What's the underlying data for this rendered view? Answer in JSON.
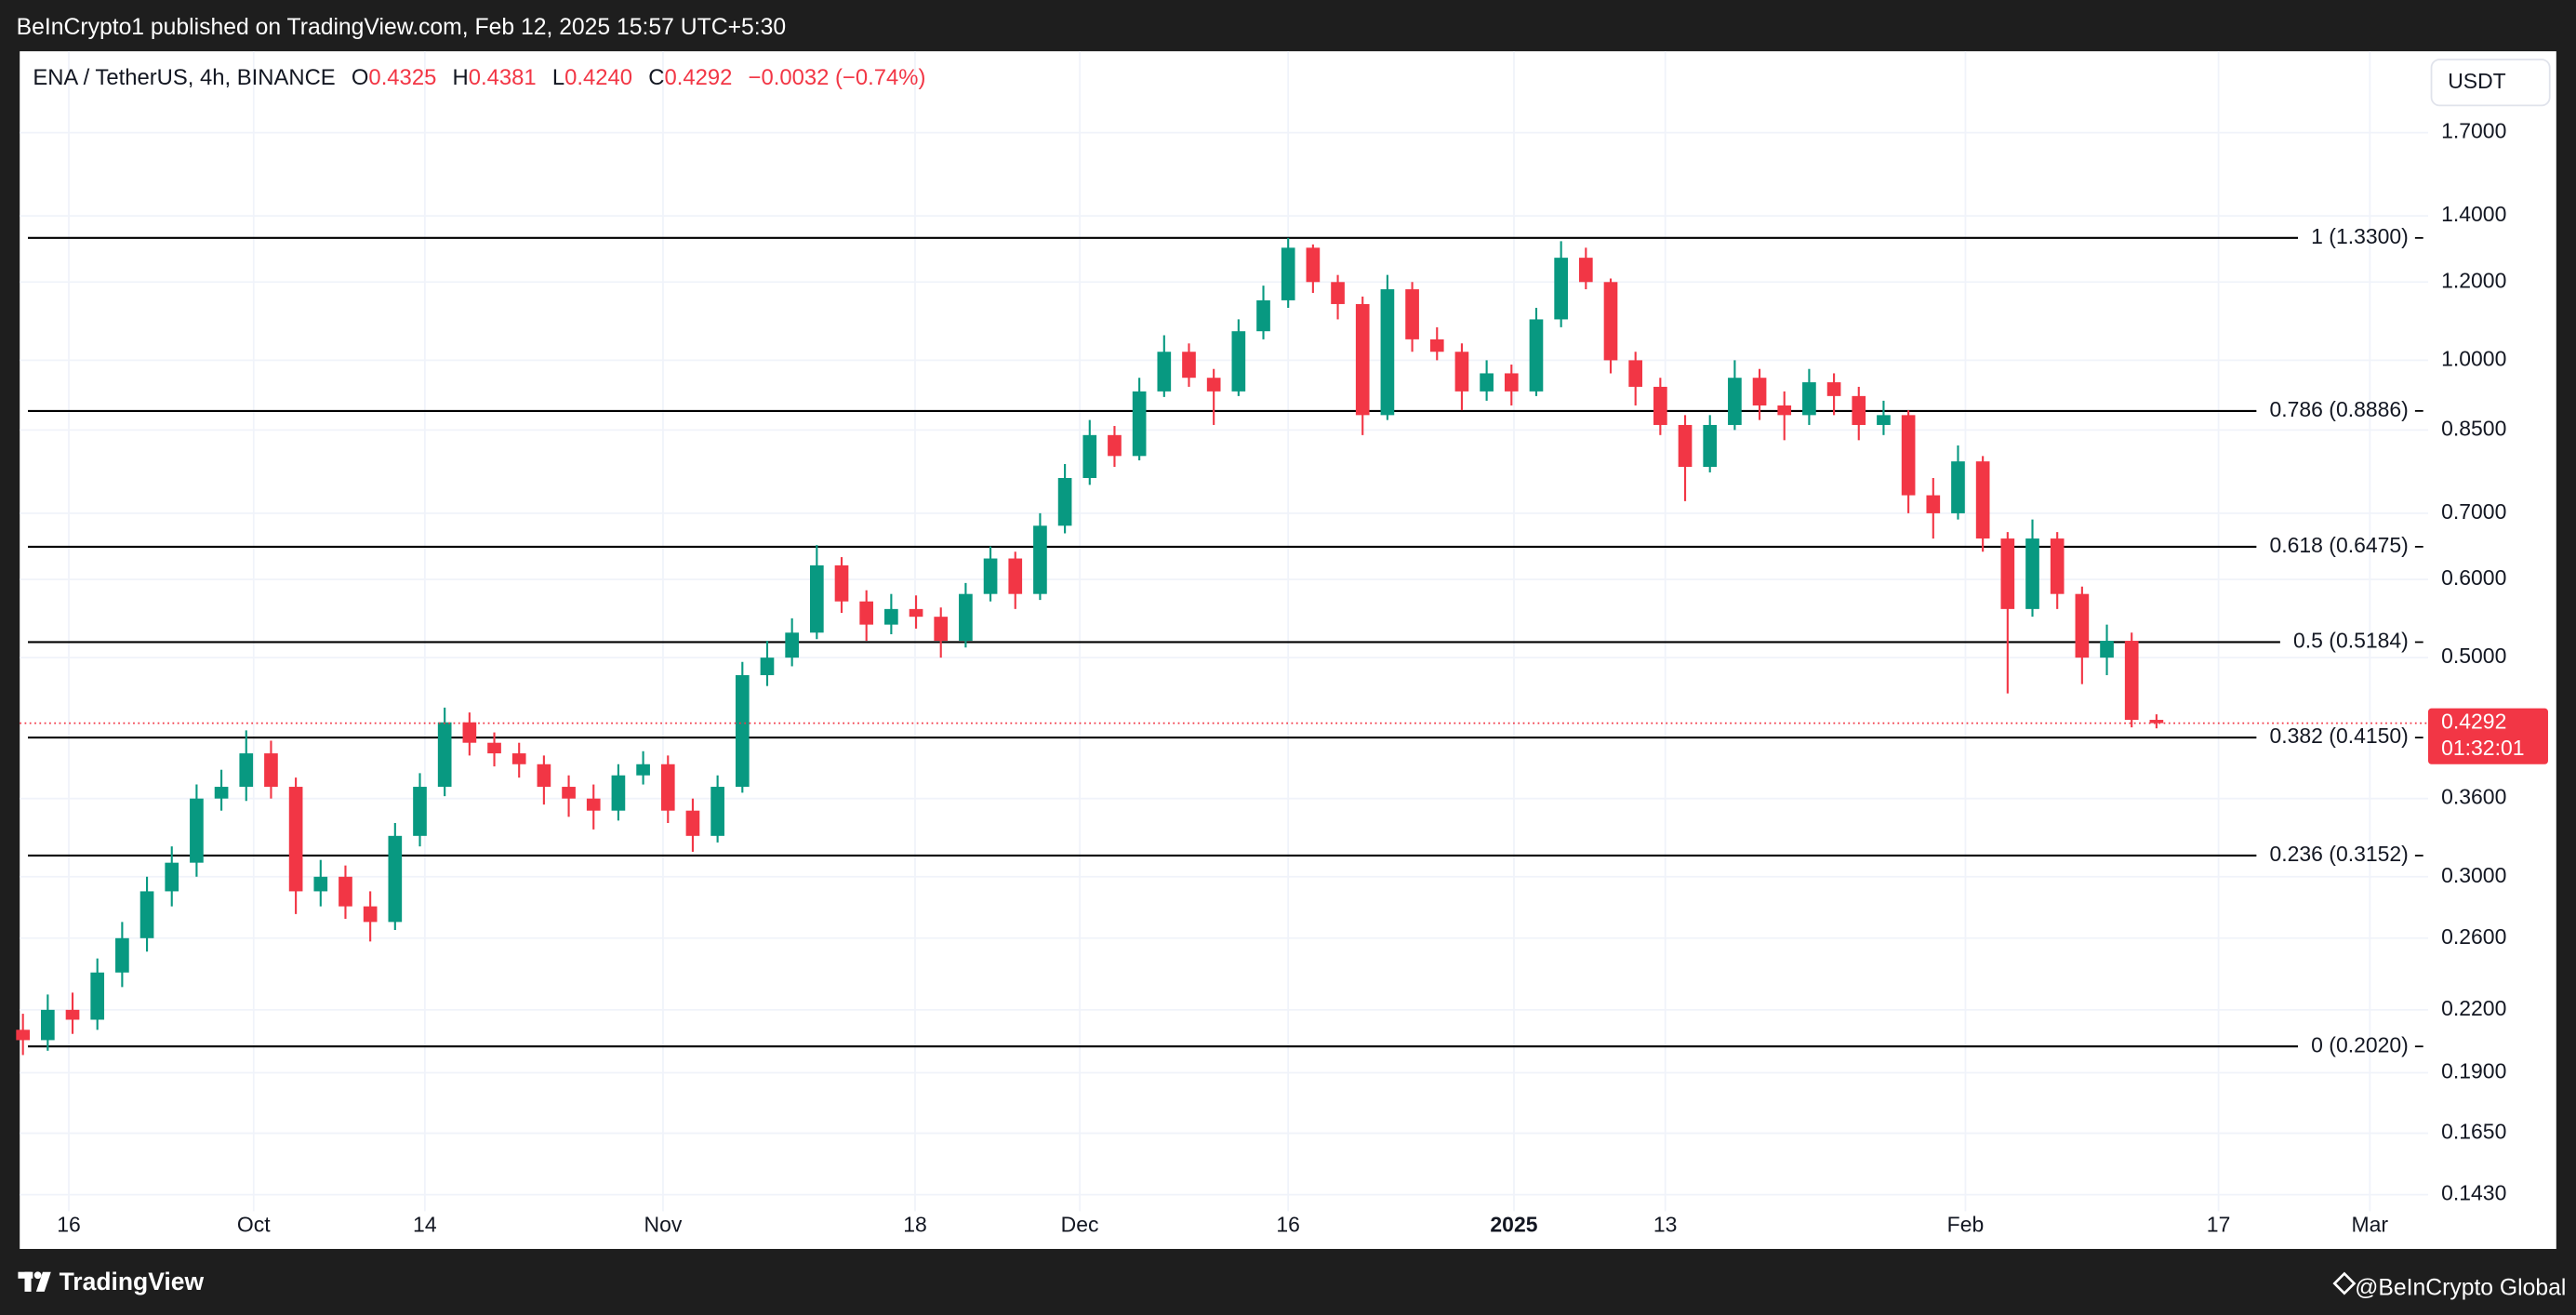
{
  "header": {
    "published": "BeInCrypto1 published on TradingView.com, Feb 12, 2025 15:57 UTC+5:30",
    "symbol": "ENA / TetherUS, 4h, BINANCE",
    "ohlc": [
      {
        "key": "O",
        "value": "0.4325"
      },
      {
        "key": "H",
        "value": "0.4381"
      },
      {
        "key": "L",
        "value": "0.4240"
      },
      {
        "key": "C",
        "value": "0.4292"
      }
    ],
    "change": "−0.0032 (−0.74%)"
  },
  "footer": {
    "brand": "TradingView",
    "credit": "@BeInCrypto Global"
  },
  "chart_data": {
    "type": "candlestick",
    "currency": "USDT",
    "log_scale": true,
    "grid": true,
    "up_color": "#089981",
    "down_color": "#f23645",
    "level_color": "#000000",
    "open": [
      0.21,
      0.205,
      0.22,
      0.215,
      0.24,
      0.26,
      0.29,
      0.31,
      0.36,
      0.37,
      0.4,
      0.37,
      0.29,
      0.3,
      0.28,
      0.27,
      0.33,
      0.37,
      0.43,
      0.41,
      0.4,
      0.39,
      0.37,
      0.36,
      0.35,
      0.38,
      0.39,
      0.35,
      0.33,
      0.37,
      0.48,
      0.5,
      0.53,
      0.62,
      0.57,
      0.54,
      0.56,
      0.55,
      0.52,
      0.58,
      0.63,
      0.58,
      0.68,
      0.76,
      0.84,
      0.8,
      0.93,
      1.02,
      0.96,
      0.93,
      1.07,
      1.15,
      1.3,
      1.2,
      1.14,
      0.88,
      1.18,
      1.05,
      1.02,
      0.93,
      0.97,
      0.93,
      1.1,
      1.27,
      1.2,
      1.0,
      0.94,
      0.86,
      0.78,
      0.86,
      0.96,
      0.9,
      0.88,
      0.95,
      0.92,
      0.86,
      0.88,
      0.73,
      0.7,
      0.79,
      0.66,
      0.56,
      0.66,
      0.58,
      0.5,
      0.52,
      0.4325
    ],
    "high": [
      0.218,
      0.228,
      0.229,
      0.248,
      0.27,
      0.3,
      0.322,
      0.372,
      0.385,
      0.422,
      0.412,
      0.378,
      0.312,
      0.308,
      0.29,
      0.34,
      0.382,
      0.445,
      0.44,
      0.42,
      0.41,
      0.398,
      0.38,
      0.372,
      0.39,
      0.402,
      0.398,
      0.36,
      0.38,
      0.495,
      0.52,
      0.548,
      0.65,
      0.632,
      0.585,
      0.58,
      0.578,
      0.562,
      0.595,
      0.648,
      0.64,
      0.7,
      0.785,
      0.87,
      0.858,
      0.96,
      1.06,
      1.04,
      0.98,
      1.1,
      1.19,
      1.33,
      1.31,
      1.22,
      1.16,
      1.22,
      1.2,
      1.08,
      1.04,
      1.0,
      0.99,
      1.13,
      1.32,
      1.3,
      1.21,
      1.02,
      0.96,
      0.88,
      0.88,
      1.0,
      0.98,
      0.93,
      0.98,
      0.97,
      0.94,
      0.91,
      0.89,
      0.76,
      0.82,
      0.8,
      0.67,
      0.69,
      0.67,
      0.59,
      0.54,
      0.53,
      0.4381
    ],
    "low": [
      0.198,
      0.2,
      0.208,
      0.21,
      0.232,
      0.252,
      0.28,
      0.3,
      0.35,
      0.358,
      0.36,
      0.275,
      0.28,
      0.272,
      0.258,
      0.265,
      0.322,
      0.362,
      0.398,
      0.388,
      0.378,
      0.355,
      0.345,
      0.335,
      0.342,
      0.372,
      0.34,
      0.318,
      0.325,
      0.365,
      0.468,
      0.49,
      0.522,
      0.555,
      0.52,
      0.528,
      0.535,
      0.5,
      0.512,
      0.57,
      0.56,
      0.572,
      0.668,
      0.748,
      0.78,
      0.792,
      0.918,
      0.94,
      0.86,
      0.92,
      1.05,
      1.13,
      1.17,
      1.1,
      0.84,
      0.87,
      1.02,
      1.0,
      0.89,
      0.91,
      0.9,
      0.92,
      1.08,
      1.18,
      0.97,
      0.9,
      0.84,
      0.72,
      0.77,
      0.85,
      0.87,
      0.83,
      0.86,
      0.88,
      0.83,
      0.84,
      0.7,
      0.66,
      0.69,
      0.64,
      0.46,
      0.55,
      0.56,
      0.47,
      0.48,
      0.425,
      0.424
    ],
    "close": [
      0.205,
      0.22,
      0.215,
      0.24,
      0.26,
      0.29,
      0.31,
      0.36,
      0.37,
      0.4,
      0.37,
      0.29,
      0.3,
      0.28,
      0.27,
      0.33,
      0.37,
      0.43,
      0.41,
      0.4,
      0.39,
      0.37,
      0.36,
      0.35,
      0.38,
      0.39,
      0.35,
      0.33,
      0.37,
      0.48,
      0.5,
      0.53,
      0.62,
      0.57,
      0.54,
      0.56,
      0.55,
      0.52,
      0.58,
      0.63,
      0.58,
      0.68,
      0.76,
      0.84,
      0.8,
      0.93,
      1.02,
      0.96,
      0.93,
      1.07,
      1.15,
      1.3,
      1.2,
      1.14,
      0.88,
      1.18,
      1.05,
      1.02,
      0.93,
      0.97,
      0.93,
      1.1,
      1.27,
      1.2,
      1.0,
      0.94,
      0.86,
      0.78,
      0.86,
      0.96,
      0.9,
      0.88,
      0.95,
      0.92,
      0.86,
      0.88,
      0.73,
      0.7,
      0.79,
      0.66,
      0.56,
      0.66,
      0.58,
      0.5,
      0.52,
      0.4325,
      0.4292
    ],
    "ylim": [
      0.1376,
      2.055
    ],
    "yticks": [
      {
        "value": 1.7,
        "label": "1.7000"
      },
      {
        "value": 1.4,
        "label": "1.4000"
      },
      {
        "value": 1.2,
        "label": "1.2000"
      },
      {
        "value": 1.0,
        "label": "1.0000"
      },
      {
        "value": 0.85,
        "label": "0.8500"
      },
      {
        "value": 0.7,
        "label": "0.7000"
      },
      {
        "value": 0.6,
        "label": "0.6000"
      },
      {
        "value": 0.5,
        "label": "0.5000"
      },
      {
        "value": 0.36,
        "label": "0.3600"
      },
      {
        "value": 0.3,
        "label": "0.3000"
      },
      {
        "value": 0.26,
        "label": "0.2600"
      },
      {
        "value": 0.22,
        "label": "0.2200"
      },
      {
        "value": 0.19,
        "label": "0.1900"
      },
      {
        "value": 0.165,
        "label": "0.1650"
      },
      {
        "value": 0.143,
        "label": "0.1430"
      }
    ],
    "xlim": [
      -0.13,
      96.95
    ],
    "xticks": [
      {
        "value": 1.85,
        "label": "16"
      },
      {
        "value": 9.3,
        "label": "Oct"
      },
      {
        "value": 16.2,
        "label": "14"
      },
      {
        "value": 25.8,
        "label": "Nov"
      },
      {
        "value": 35.96,
        "label": "18"
      },
      {
        "value": 42.6,
        "label": "Dec"
      },
      {
        "value": 51.0,
        "label": "16"
      },
      {
        "value": 60.1,
        "label": "2025"
      },
      {
        "value": 66.2,
        "label": "13"
      },
      {
        "value": 78.3,
        "label": "Feb"
      },
      {
        "value": 88.5,
        "label": "17"
      },
      {
        "value": 94.6,
        "label": "Mar"
      }
    ],
    "levels": [
      {
        "value": 1.33,
        "label": "1 (1.3300)"
      },
      {
        "value": 0.8886,
        "label": "0.786 (0.8886)"
      },
      {
        "value": 0.6475,
        "label": "0.618 (0.6475)"
      },
      {
        "value": 0.5184,
        "label": "0.5 (0.5184)"
      },
      {
        "value": 0.415,
        "label": "0.382 (0.4150)"
      },
      {
        "value": 0.3152,
        "label": "0.236 (0.3152)"
      },
      {
        "value": 0.202,
        "label": "0 (0.2020)"
      }
    ],
    "last_price": 0.4292,
    "countdown": "01:32:01"
  }
}
